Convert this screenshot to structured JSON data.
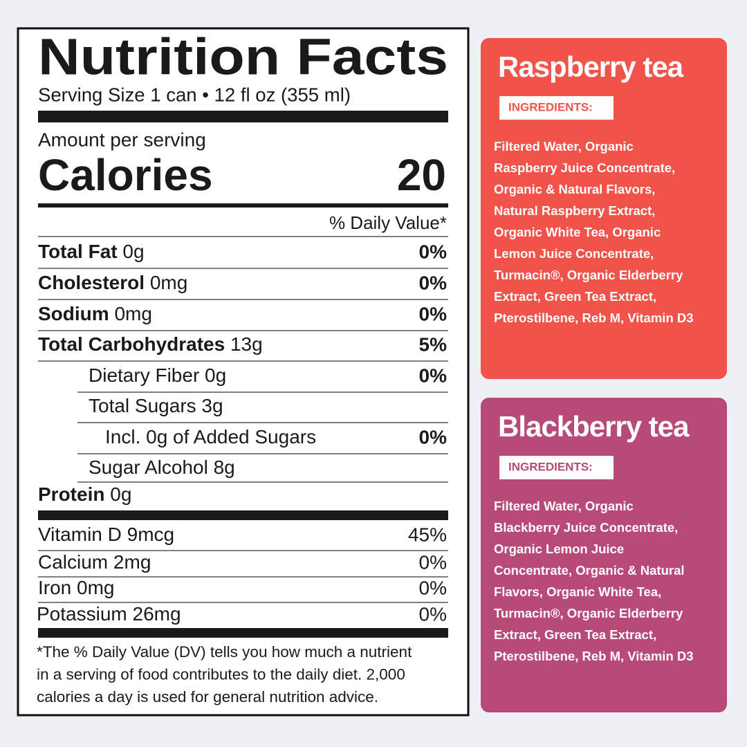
{
  "label": {
    "title": "Nutrition Facts",
    "serving": "Serving Size 1 can • 12 fl oz (355 ml)",
    "amount_per_serving": "Amount per serving",
    "calories_label": "Calories",
    "calories": "20",
    "daily_value_header": "% Daily Value*",
    "rows": [
      {
        "name": "Total Fat",
        "amount": "0g",
        "dv": "0%"
      },
      {
        "name": "Cholesterol",
        "amount": "0mg",
        "dv": "0%"
      },
      {
        "name": "Sodium",
        "amount": "0mg",
        "dv": "0%"
      },
      {
        "name": "Total Carbohydrates",
        "amount": "13g",
        "dv": "5%"
      },
      {
        "name": "Dietary Fiber",
        "amount": "0g",
        "dv": "0%"
      },
      {
        "name": "Total Sugars",
        "amount": "3g"
      },
      {
        "name": "Incl. 0g of Added Sugars",
        "dv": "0%"
      },
      {
        "name": "Sugar Alcohol",
        "amount": "8g"
      },
      {
        "name": "Protein",
        "amount": "0g"
      },
      {
        "name": "Vitamin D",
        "amount": "9mcg",
        "dv": "45%"
      },
      {
        "name": "Calcium",
        "amount": "2mg",
        "dv": "0%"
      },
      {
        "name": "Iron",
        "amount": "0mg",
        "dv": "0%"
      },
      {
        "name": "Potassium",
        "amount": "26mg",
        "dv": "0%"
      }
    ],
    "footnote": [
      "*The % Daily Value (DV) tells you how much a nutrient",
      "in a serving of food contributes to the daily diet. 2,000",
      "calories a day is used for general nutrition advice."
    ]
  },
  "cards": [
    {
      "title": "Raspberry tea",
      "ingredients_label": "INGREDIENTS:",
      "ingredients": [
        "Filtered Water, Organic",
        "Raspberry Juice Concentrate,",
        "Organic & Natural Flavors,",
        "Natural Raspberry Extract,",
        "Organic White Tea, Organic",
        "Lemon Juice Concentrate,",
        "Turmacin®, Organic Elderberry",
        "Extract, Green Tea Extract,",
        "Pterostilbene, Reb M, Vitamin D3"
      ]
    },
    {
      "title": "Blackberry tea",
      "ingredients_label": "INGREDIENTS:",
      "ingredients": [
        "Filtered Water, Organic",
        "Blackberry Juice Concentrate,",
        "Organic Lemon Juice",
        "Concentrate, Organic & Natural",
        "Flavors, Organic White Tea,",
        "Turmacin®, Organic Elderberry",
        "Extract, Green Tea Extract,",
        "Pterostilbene, Reb M, Vitamin D3"
      ]
    }
  ]
}
